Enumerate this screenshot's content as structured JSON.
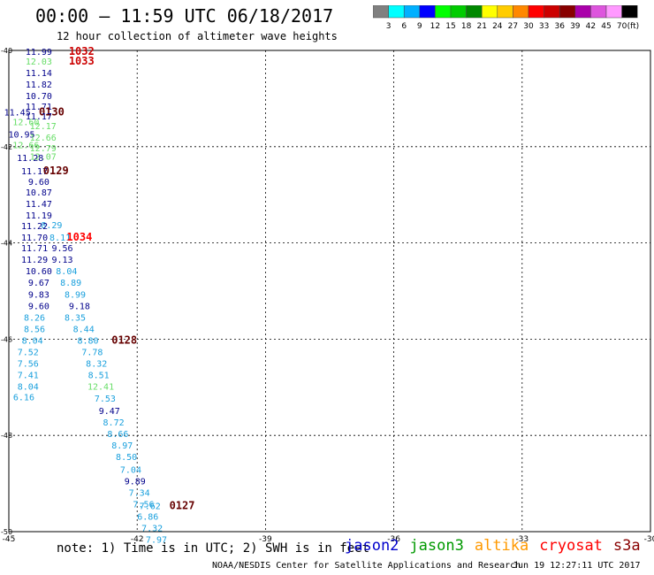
{
  "header": {
    "title": "00:00 – 11:59 UTC 06/18/2017",
    "subtitle": "12 hour collection of altimeter wave heights"
  },
  "colorbar": {
    "unit_label": "(ft)",
    "bins": [
      {
        "label": "3",
        "color": "#808080"
      },
      {
        "label": "6",
        "color": "#00ffff"
      },
      {
        "label": "9",
        "color": "#00b0ff"
      },
      {
        "label": "12",
        "color": "#0000ff"
      },
      {
        "label": "15",
        "color": "#00ff00"
      },
      {
        "label": "18",
        "color": "#00cc00"
      },
      {
        "label": "21",
        "color": "#008800"
      },
      {
        "label": "24",
        "color": "#ffff00"
      },
      {
        "label": "27",
        "color": "#ffcc00"
      },
      {
        "label": "30",
        "color": "#ff8800"
      },
      {
        "label": "33",
        "color": "#ff0000"
      },
      {
        "label": "36",
        "color": "#cc0000"
      },
      {
        "label": "39",
        "color": "#880000"
      },
      {
        "label": "42",
        "color": "#aa00aa"
      },
      {
        "label": "45",
        "color": "#dd55dd"
      },
      {
        "label": "70",
        "color": "#ff99ff"
      },
      {
        "label": "",
        "color": "#000000"
      }
    ]
  },
  "map": {
    "lon_ticks": [
      -45,
      -42,
      -39,
      -36,
      -33,
      -30
    ],
    "lat_ticks": [
      -40,
      -42,
      -44,
      -46,
      -48,
      -50
    ],
    "lon_range": [
      -45,
      -30
    ],
    "lat_range": [
      -50,
      -40
    ]
  },
  "observations": [
    {
      "lon": -44.3,
      "lat": -40.02,
      "text": "11.99",
      "color": "#00008b"
    },
    {
      "lon": -43.3,
      "lat": -40.02,
      "text": "1032",
      "color": "#cc0000",
      "kind": "time"
    },
    {
      "lon": -44.3,
      "lat": -40.22,
      "text": "12.03",
      "color": "#66dd66"
    },
    {
      "lon": -43.3,
      "lat": -40.22,
      "text": "1033",
      "color": "#cc0000",
      "kind": "time"
    },
    {
      "lon": -44.3,
      "lat": -40.46,
      "text": "11.14",
      "color": "#00008b"
    },
    {
      "lon": -44.3,
      "lat": -40.7,
      "text": "11.82",
      "color": "#00008b"
    },
    {
      "lon": -44.3,
      "lat": -40.94,
      "text": "10.70",
      "color": "#00008b"
    },
    {
      "lon": -44.3,
      "lat": -41.16,
      "text": "11.71",
      "color": "#00008b"
    },
    {
      "lon": -44.8,
      "lat": -41.28,
      "text": "11.45",
      "color": "#00008b"
    },
    {
      "lon": -44.0,
      "lat": -41.28,
      "text": "0130",
      "color": "#660000",
      "kind": "time"
    },
    {
      "lon": -44.3,
      "lat": -41.36,
      "text": "11.17",
      "color": "#00008b"
    },
    {
      "lon": -44.6,
      "lat": -41.48,
      "text": "12.60",
      "color": "#66dd66"
    },
    {
      "lon": -44.2,
      "lat": -41.56,
      "text": "12.17",
      "color": "#66dd66"
    },
    {
      "lon": -44.7,
      "lat": -41.74,
      "text": "10.95",
      "color": "#00008b"
    },
    {
      "lon": -44.2,
      "lat": -41.8,
      "text": "12.66",
      "color": "#66dd66"
    },
    {
      "lon": -44.6,
      "lat": -41.96,
      "text": "12.66",
      "color": "#66dd66"
    },
    {
      "lon": -44.2,
      "lat": -42.02,
      "text": "12.79",
      "color": "#66dd66"
    },
    {
      "lon": -44.2,
      "lat": -42.2,
      "text": "12.07",
      "color": "#66dd66"
    },
    {
      "lon": -44.5,
      "lat": -42.22,
      "text": "11.28",
      "color": "#00008b"
    },
    {
      "lon": -44.4,
      "lat": -42.5,
      "text": "11.17",
      "color": "#00008b"
    },
    {
      "lon": -43.9,
      "lat": -42.5,
      "text": "0129",
      "color": "#660000",
      "kind": "time"
    },
    {
      "lon": -44.3,
      "lat": -42.72,
      "text": "9.60",
      "color": "#00008b"
    },
    {
      "lon": -44.3,
      "lat": -42.94,
      "text": "10.87",
      "color": "#00008b"
    },
    {
      "lon": -44.3,
      "lat": -43.18,
      "text": "11.47",
      "color": "#00008b"
    },
    {
      "lon": -44.3,
      "lat": -43.42,
      "text": "11.19",
      "color": "#00008b"
    },
    {
      "lon": -44.0,
      "lat": -43.62,
      "text": "8.29",
      "color": "#1aa0dd"
    },
    {
      "lon": -44.4,
      "lat": -43.64,
      "text": "11.22",
      "color": "#00008b"
    },
    {
      "lon": -44.4,
      "lat": -43.88,
      "text": "11.70",
      "color": "#00008b"
    },
    {
      "lon": -43.8,
      "lat": -43.88,
      "text": "8.11",
      "color": "#1aa0dd"
    },
    {
      "lon": -43.35,
      "lat": -43.88,
      "text": "1034",
      "color": "#ff0000",
      "kind": "time"
    },
    {
      "lon": -44.4,
      "lat": -44.1,
      "text": "11.71",
      "color": "#00008b"
    },
    {
      "lon": -43.75,
      "lat": -44.1,
      "text": "9.56",
      "color": "#00008b"
    },
    {
      "lon": -44.4,
      "lat": -44.34,
      "text": "11.29",
      "color": "#00008b"
    },
    {
      "lon": -43.75,
      "lat": -44.34,
      "text": "9.13",
      "color": "#00008b"
    },
    {
      "lon": -44.3,
      "lat": -44.58,
      "text": "10.60",
      "color": "#00008b"
    },
    {
      "lon": -43.65,
      "lat": -44.58,
      "text": "8.04",
      "color": "#1aa0dd"
    },
    {
      "lon": -44.3,
      "lat": -44.82,
      "text": "9.67",
      "color": "#00008b"
    },
    {
      "lon": -43.55,
      "lat": -44.82,
      "text": "8.89",
      "color": "#1aa0dd"
    },
    {
      "lon": -44.3,
      "lat": -45.06,
      "text": "9.83",
      "color": "#00008b"
    },
    {
      "lon": -43.45,
      "lat": -45.06,
      "text": "8.99",
      "color": "#1aa0dd"
    },
    {
      "lon": -44.3,
      "lat": -45.3,
      "text": "9.60",
      "color": "#00008b"
    },
    {
      "lon": -43.35,
      "lat": -45.3,
      "text": "9.18",
      "color": "#00008b"
    },
    {
      "lon": -44.4,
      "lat": -45.54,
      "text": "8.26",
      "color": "#1aa0dd"
    },
    {
      "lon": -43.45,
      "lat": -45.54,
      "text": "8.35",
      "color": "#1aa0dd"
    },
    {
      "lon": -44.4,
      "lat": -45.78,
      "text": "8.56",
      "color": "#1aa0dd"
    },
    {
      "lon": -43.25,
      "lat": -45.78,
      "text": "8.44",
      "color": "#1aa0dd"
    },
    {
      "lon": -44.45,
      "lat": -46.02,
      "text": "8.04",
      "color": "#1aa0dd"
    },
    {
      "lon": -43.15,
      "lat": -46.02,
      "text": "8.80",
      "color": "#1aa0dd"
    },
    {
      "lon": -42.3,
      "lat": -46.02,
      "text": "0128",
      "color": "#660000",
      "kind": "time"
    },
    {
      "lon": -44.55,
      "lat": -46.26,
      "text": "7.52",
      "color": "#1aa0dd"
    },
    {
      "lon": -43.05,
      "lat": -46.26,
      "text": "7.78",
      "color": "#1aa0dd"
    },
    {
      "lon": -44.55,
      "lat": -46.5,
      "text": "7.56",
      "color": "#1aa0dd"
    },
    {
      "lon": -42.95,
      "lat": -46.5,
      "text": "8.32",
      "color": "#1aa0dd"
    },
    {
      "lon": -44.55,
      "lat": -46.74,
      "text": "7.41",
      "color": "#1aa0dd"
    },
    {
      "lon": -42.9,
      "lat": -46.74,
      "text": "8.51",
      "color": "#1aa0dd"
    },
    {
      "lon": -44.55,
      "lat": -46.98,
      "text": "8.04",
      "color": "#1aa0dd"
    },
    {
      "lon": -42.85,
      "lat": -46.98,
      "text": "12.41",
      "color": "#66dd66"
    },
    {
      "lon": -44.65,
      "lat": -47.2,
      "text": "6.16",
      "color": "#1aa0dd"
    },
    {
      "lon": -42.75,
      "lat": -47.22,
      "text": "7.53",
      "color": "#1aa0dd"
    },
    {
      "lon": -42.65,
      "lat": -47.48,
      "text": "9.47",
      "color": "#00008b"
    },
    {
      "lon": -42.55,
      "lat": -47.72,
      "text": "8.72",
      "color": "#1aa0dd"
    },
    {
      "lon": -42.45,
      "lat": -47.96,
      "text": "8.66",
      "color": "#1aa0dd"
    },
    {
      "lon": -42.35,
      "lat": -48.2,
      "text": "8.97",
      "color": "#1aa0dd"
    },
    {
      "lon": -42.25,
      "lat": -48.44,
      "text": "8.50",
      "color": "#1aa0dd"
    },
    {
      "lon": -42.15,
      "lat": -48.7,
      "text": "7.04",
      "color": "#1aa0dd"
    },
    {
      "lon": -42.05,
      "lat": -48.94,
      "text": "9.89",
      "color": "#00008b"
    },
    {
      "lon": -41.95,
      "lat": -49.18,
      "text": "7.34",
      "color": "#1aa0dd"
    },
    {
      "lon": -41.85,
      "lat": -49.42,
      "text": "7.56",
      "color": "#1aa0dd"
    },
    {
      "lon": -41.7,
      "lat": -49.46,
      "text": "7.62",
      "color": "#1aa0dd"
    },
    {
      "lon": -40.95,
      "lat": -49.46,
      "text": "0127",
      "color": "#660000",
      "kind": "time"
    },
    {
      "lon": -41.75,
      "lat": -49.68,
      "text": "6.86",
      "color": "#1aa0dd"
    },
    {
      "lon": -41.65,
      "lat": -49.92,
      "text": "7.32",
      "color": "#1aa0dd"
    },
    {
      "lon": -41.55,
      "lat": -50.16,
      "text": "7.97",
      "color": "#1aa0dd"
    }
  ],
  "footer": {
    "note": "note:  1) Time is in UTC; 2) SWH is in feet",
    "legend": [
      {
        "label": "jason2",
        "color": "#0000cc"
      },
      {
        "label": "jason3",
        "color": "#009900"
      },
      {
        "label": "altika",
        "color": "#ff9900"
      },
      {
        "label": "cryosat",
        "color": "#ff0000"
      },
      {
        "label": "s3a",
        "color": "#880000"
      }
    ],
    "credit": "NOAA/NESDIS Center for Satellite Applications and Research",
    "generated": "Jun 19 12:27:11 UTC 2017"
  }
}
